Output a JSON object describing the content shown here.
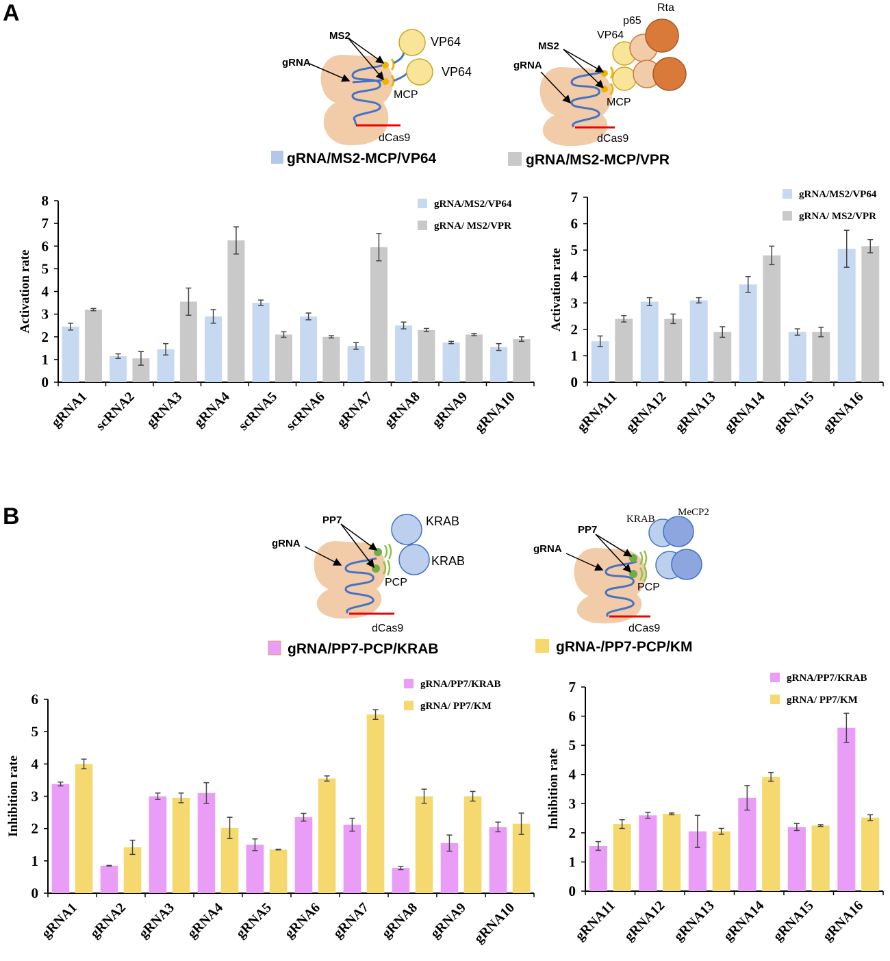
{
  "panels": {
    "a": "A",
    "b": "B"
  },
  "diagram_a": {
    "left": {
      "ms2": "MS2",
      "grna": "gRNA",
      "vp64_1": "VP64",
      "vp64_2": "VP64",
      "mcp": "MCP",
      "dcas9": "dCas9",
      "legend": "gRNA/MS2-MCP/VP64"
    },
    "right": {
      "rta": "Rta",
      "p65": "p65",
      "vp64": "VP64",
      "ms2": "MS2",
      "grna": "gRNA",
      "mcp": "MCP",
      "dcas9": "dCas9",
      "legend": "gRNA/MS2-MCP/VPR"
    }
  },
  "diagram_b": {
    "left": {
      "pp7": "PP7",
      "grna": "gRNA",
      "krab_1": "KRAB",
      "krab_2": "KRAB",
      "pcp": "PCP",
      "dcas9": "dCas9",
      "legend": "gRNA/PP7-PCP/KRAB"
    },
    "right": {
      "krab": "KRAB",
      "mecp2": "MeCP2",
      "pp7": "PP7",
      "grna": "gRNA",
      "pcp": "PCP",
      "dcas9": "dCas9",
      "legend": "gRNA-/PP7-PCP/KM"
    }
  },
  "colors": {
    "vp64": "#c6d9f0",
    "vpr": "#c9c9c9",
    "krab": "#e99df6",
    "km": "#f5d96f"
  },
  "chart_data": [
    {
      "type": "bar",
      "title": "",
      "xlabel": "",
      "ylabel": "Activation rate",
      "ylim": [
        0,
        8
      ],
      "yticks": [
        0,
        1,
        2,
        3,
        4,
        5,
        6,
        7,
        8
      ],
      "grid": false,
      "legend_position": "top-right",
      "categories": [
        "gRNA1",
        "scRNA2",
        "gRNA3",
        "gRNA4",
        "scRNA5",
        "scRNA6",
        "gRNA7",
        "gRNA8",
        "gRNA9",
        "gRNA10"
      ],
      "series": [
        {
          "name": "gRNA/MS2/VP64",
          "color": "#c6d9f0",
          "values": [
            2.45,
            1.15,
            1.45,
            2.9,
            3.5,
            2.9,
            1.6,
            2.5,
            1.75,
            1.55
          ],
          "errors": [
            0.15,
            0.1,
            0.25,
            0.3,
            0.12,
            0.15,
            0.15,
            0.15,
            0.05,
            0.15
          ]
        },
        {
          "name": "gRNA/ MS2/VPR",
          "color": "#c9c9c9",
          "values": [
            3.2,
            1.05,
            3.55,
            6.25,
            2.1,
            2.0,
            5.95,
            2.3,
            2.1,
            1.9
          ],
          "errors": [
            0.05,
            0.3,
            0.6,
            0.6,
            0.12,
            0.05,
            0.6,
            0.07,
            0.05,
            0.1
          ]
        }
      ]
    },
    {
      "type": "bar",
      "title": "",
      "xlabel": "",
      "ylabel": "Activation rate",
      "ylim": [
        0,
        7
      ],
      "yticks": [
        0,
        1,
        2,
        3,
        4,
        5,
        6,
        7
      ],
      "grid": false,
      "legend_position": "top-right",
      "categories": [
        "gRNA11",
        "gRNA12",
        "gRNA13",
        "gRNA14",
        "gRNA15",
        "gRNA16"
      ],
      "series": [
        {
          "name": "gRNA/MS2/VP64",
          "color": "#c6d9f0",
          "values": [
            1.55,
            3.05,
            3.1,
            3.7,
            1.9,
            5.05
          ],
          "errors": [
            0.2,
            0.15,
            0.1,
            0.3,
            0.12,
            0.7
          ]
        },
        {
          "name": "gRNA/ MS2/VPR",
          "color": "#c9c9c9",
          "values": [
            2.4,
            2.4,
            1.9,
            4.8,
            1.9,
            5.15
          ],
          "errors": [
            0.12,
            0.18,
            0.2,
            0.35,
            0.18,
            0.25
          ]
        }
      ]
    },
    {
      "type": "bar",
      "title": "",
      "xlabel": "",
      "ylabel": "Inhibition rate",
      "ylim": [
        0,
        6
      ],
      "yticks": [
        0,
        1,
        2,
        3,
        4,
        5,
        6
      ],
      "grid": false,
      "legend_position": "top-right",
      "categories": [
        "gRNA1",
        "gRNA2",
        "gRNA3",
        "gRNA4",
        "gRNA5",
        "gRNA6",
        "gRNA7",
        "gRNA8",
        "gRNA9",
        "gRNA10"
      ],
      "series": [
        {
          "name": "gRNA/PP7/KRAB",
          "color": "#e99df6",
          "values": [
            3.38,
            0.85,
            3.0,
            3.1,
            1.5,
            2.35,
            2.12,
            0.78,
            1.55,
            2.05
          ],
          "errors": [
            0.06,
            0.01,
            0.1,
            0.32,
            0.18,
            0.12,
            0.2,
            0.05,
            0.25,
            0.15
          ]
        },
        {
          "name": "gRNA/ PP7/KM",
          "color": "#f5d96f",
          "values": [
            4.0,
            1.42,
            2.95,
            2.02,
            1.35,
            3.55,
            5.53,
            3.0,
            3.0,
            2.15
          ],
          "errors": [
            0.15,
            0.22,
            0.15,
            0.33,
            0.01,
            0.08,
            0.15,
            0.22,
            0.15,
            0.33
          ]
        }
      ]
    },
    {
      "type": "bar",
      "title": "",
      "xlabel": "",
      "ylabel": "Inhibition rate",
      "ylim": [
        0,
        7
      ],
      "yticks": [
        0,
        1,
        2,
        3,
        4,
        5,
        6,
        7
      ],
      "grid": false,
      "legend_position": "top-right",
      "categories": [
        "gRNA11",
        "gRNA12",
        "gRNA13",
        "gRNA14",
        "gRNA15",
        "gRNA16"
      ],
      "series": [
        {
          "name": "gRNA/PP7/KRAB",
          "color": "#e99df6",
          "values": [
            1.55,
            2.6,
            2.05,
            3.2,
            2.2,
            5.6
          ],
          "errors": [
            0.15,
            0.1,
            0.55,
            0.42,
            0.12,
            0.5
          ]
        },
        {
          "name": "gRNA/ PP7/KM",
          "color": "#f5d96f",
          "values": [
            2.3,
            2.65,
            2.05,
            3.92,
            2.25,
            2.52
          ],
          "errors": [
            0.15,
            0.03,
            0.1,
            0.15,
            0.03,
            0.1
          ]
        }
      ]
    }
  ]
}
